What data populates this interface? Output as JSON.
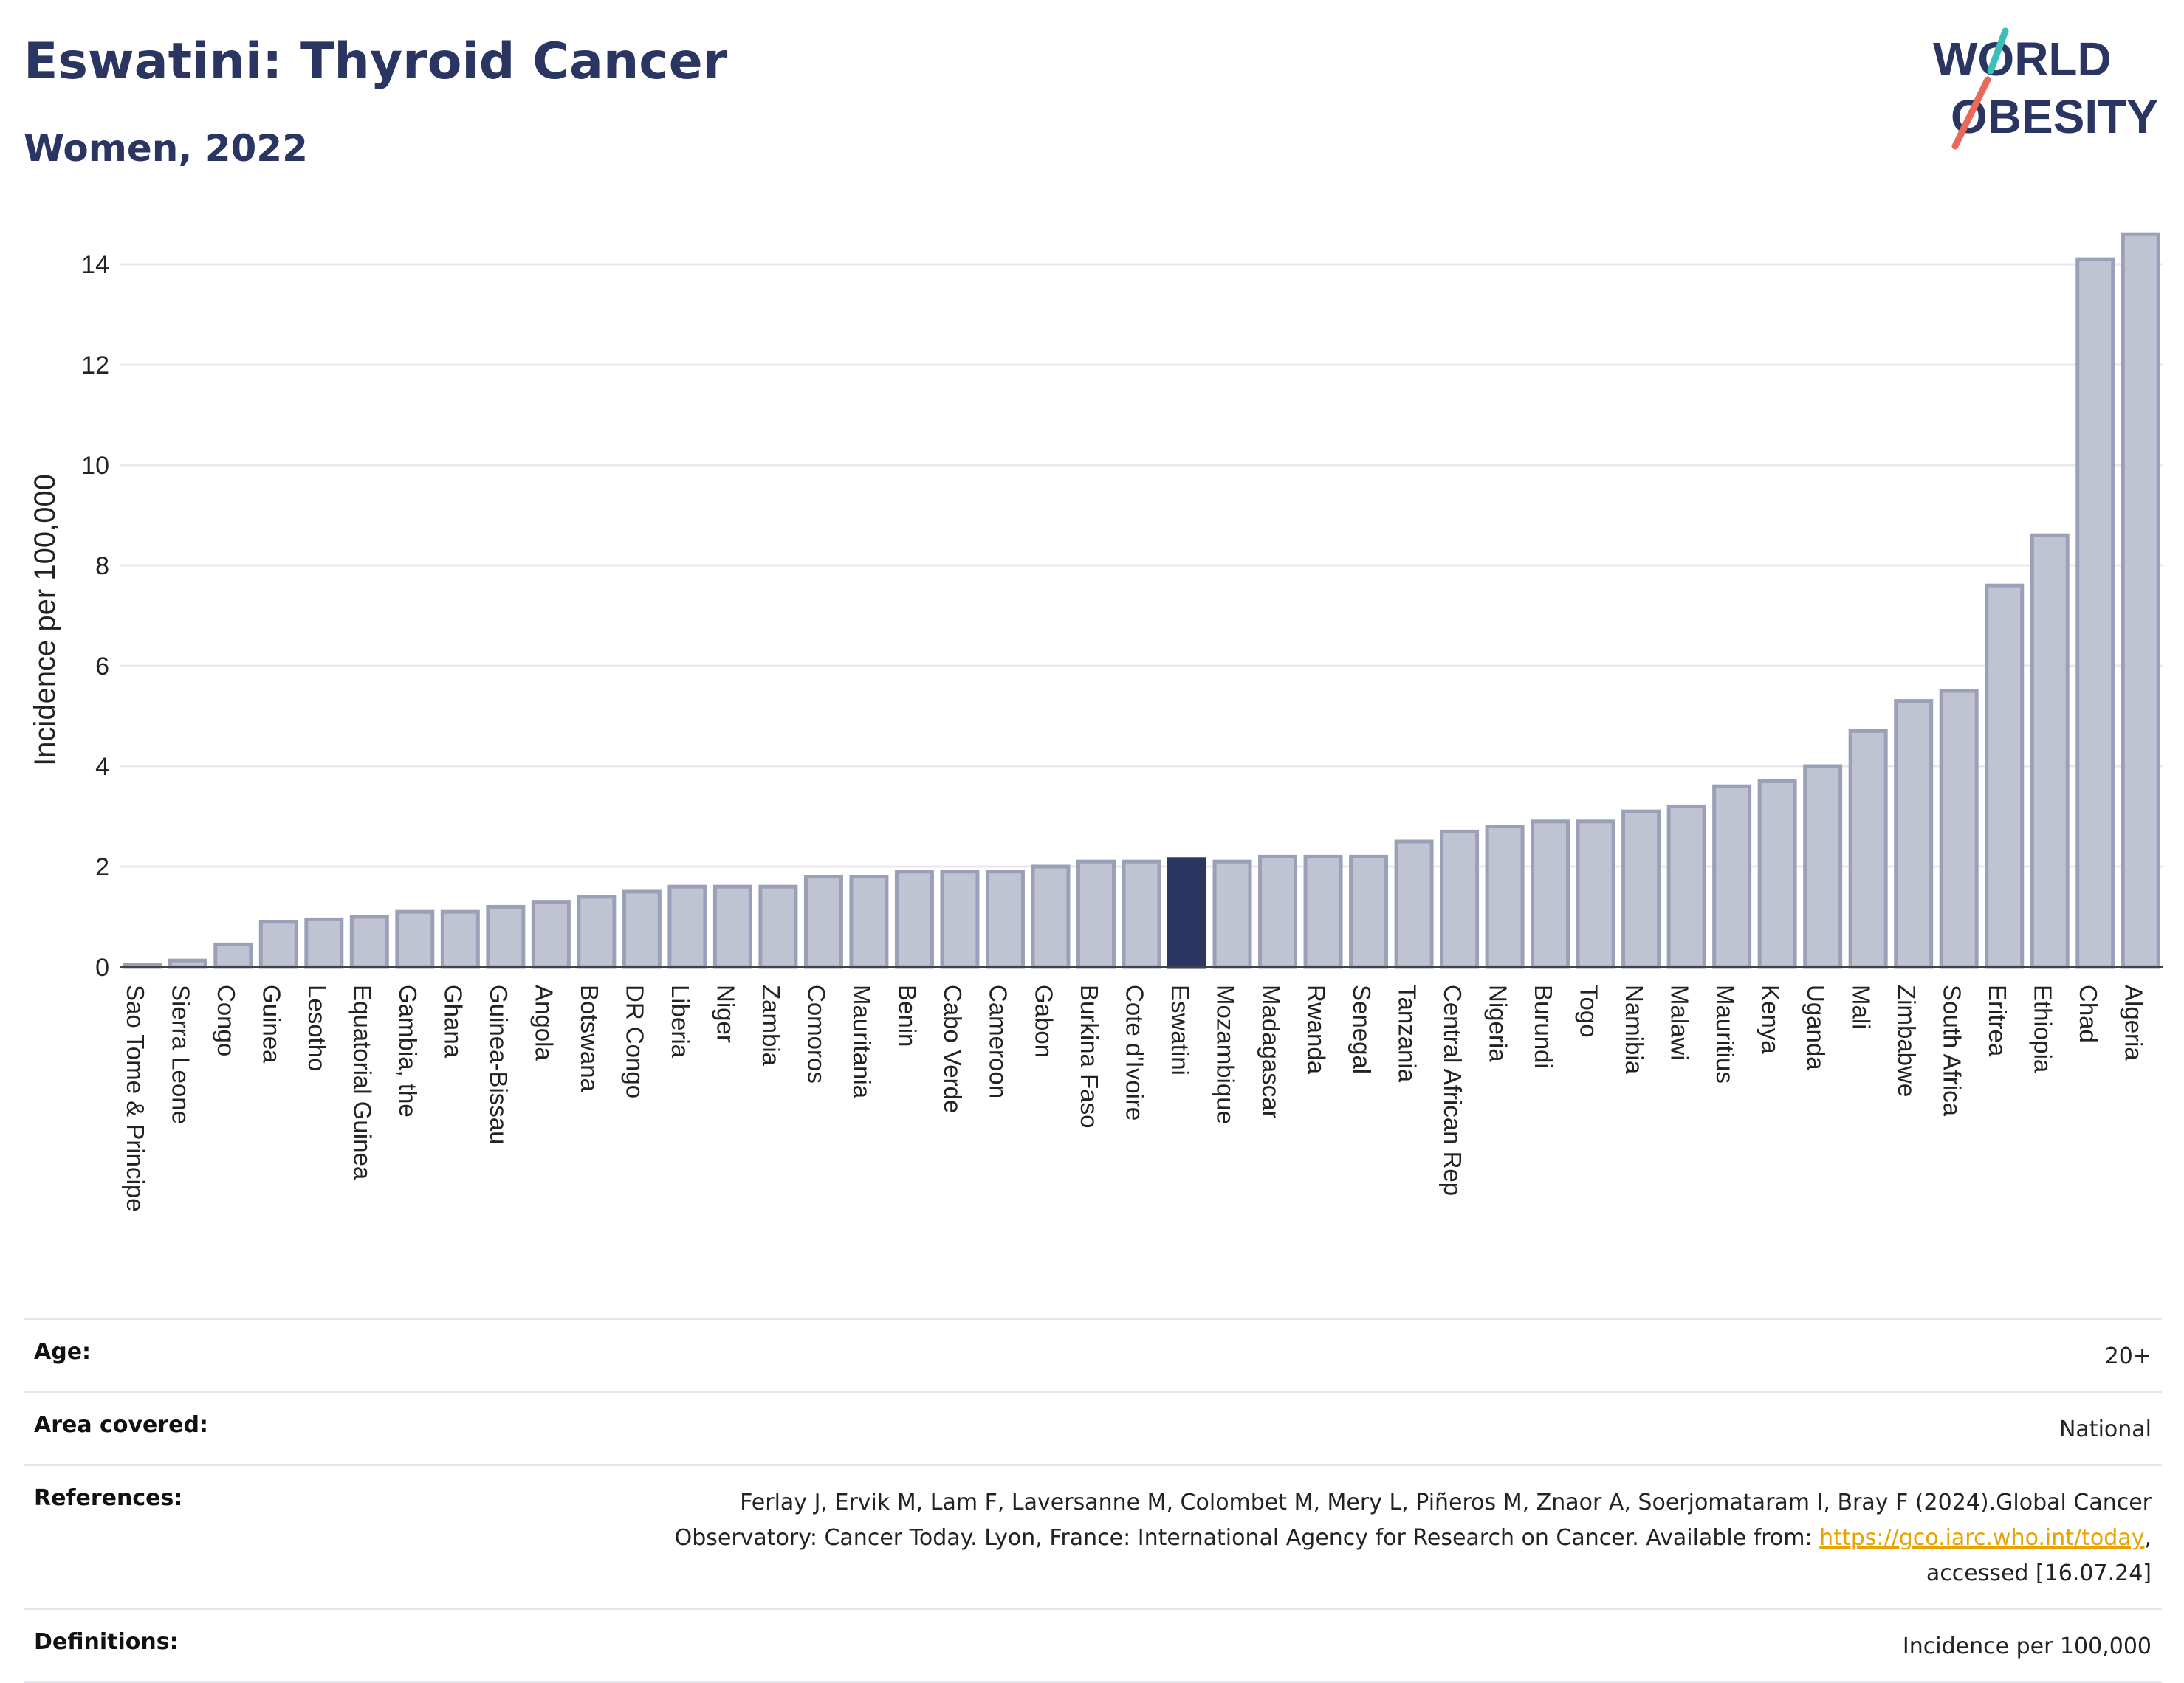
{
  "header": {
    "title": "Eswatini: Thyroid Cancer",
    "subtitle": "Women, 2022"
  },
  "logo": {
    "line1": "WORLD",
    "line2": "OBESITY",
    "colors": {
      "text": "#2a3561",
      "slash_teal": "#3bbfb7",
      "slash_coral": "#e9695a"
    }
  },
  "chart_data": {
    "type": "bar",
    "title": "",
    "xlabel": "",
    "ylabel": "Incidence per 100,000",
    "ylim": [
      0,
      15
    ],
    "yticks": [
      0,
      2,
      4,
      6,
      8,
      10,
      12,
      14
    ],
    "grid": true,
    "highlight": "Eswatini",
    "colors": {
      "bar": "#c0c3d2",
      "bar_edge": "#9aa0b8",
      "highlight": "#2a3561"
    },
    "categories": [
      "Sao Tome & Principe",
      "Sierra Leone",
      "Congo",
      "Guinea",
      "Lesotho",
      "Equatorial Guinea",
      "Gambia, the",
      "Ghana",
      "Guinea-Bissau",
      "Angola",
      "Botswana",
      "DR Congo",
      "Liberia",
      "Niger",
      "Zambia",
      "Comoros",
      "Mauritania",
      "Benin",
      "Cabo Verde",
      "Cameroon",
      "Gabon",
      "Burkina Faso",
      "Cote d'Ivoire",
      "Eswatini",
      "Mozambique",
      "Madagascar",
      "Rwanda",
      "Senegal",
      "Tanzania",
      "Central African Rep",
      "Nigeria",
      "Burundi",
      "Togo",
      "Namibia",
      "Malawi",
      "Mauritius",
      "Kenya",
      "Uganda",
      "Mali",
      "Zimbabwe",
      "South Africa",
      "Eritrea",
      "Ethiopia",
      "Chad",
      "Algeria"
    ],
    "values": [
      0.05,
      0.13,
      0.45,
      0.9,
      0.95,
      1.0,
      1.1,
      1.1,
      1.2,
      1.3,
      1.4,
      1.5,
      1.6,
      1.6,
      1.6,
      1.8,
      1.8,
      1.9,
      1.9,
      1.9,
      2.0,
      2.1,
      2.1,
      2.15,
      2.1,
      2.2,
      2.2,
      2.2,
      2.5,
      2.7,
      2.8,
      2.9,
      2.9,
      3.1,
      3.2,
      3.6,
      3.7,
      4.0,
      4.7,
      5.3,
      5.5,
      7.6,
      8.6,
      14.1,
      14.6
    ]
  },
  "meta": {
    "rows": [
      {
        "label": "Age:",
        "value": "20+"
      },
      {
        "label": "Area covered:",
        "value": "National"
      },
      {
        "label": "References:",
        "line1": "Ferlay J, Ervik M, Lam F, Laversanne M, Colombet M, Mery L, Piñeros M, Znaor A, Soerjomataram I, Bray F (2024).Global Cancer",
        "line2_pre": "Observatory: Cancer Today. Lyon, France: International Agency for Research on Cancer. Available from: ",
        "link": "https://gco.iarc.who.int/today",
        "line2_post": ",",
        "line3": "accessed [16.07.24]"
      },
      {
        "label": "Definitions:",
        "value": "Incidence per 100,000"
      }
    ]
  }
}
